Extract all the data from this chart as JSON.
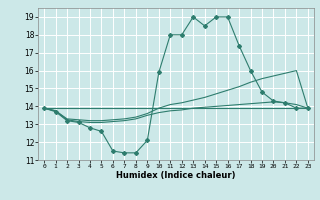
{
  "title": "",
  "xlabel": "Humidex (Indice chaleur)",
  "xlim": [
    -0.5,
    23.5
  ],
  "ylim": [
    11,
    19.5
  ],
  "yticks": [
    11,
    12,
    13,
    14,
    15,
    16,
    17,
    18,
    19
  ],
  "xticks": [
    0,
    1,
    2,
    3,
    4,
    5,
    6,
    7,
    8,
    9,
    10,
    11,
    12,
    13,
    14,
    15,
    16,
    17,
    18,
    19,
    20,
    21,
    22,
    23
  ],
  "background_color": "#cce8e8",
  "grid_color": "#ffffff",
  "line_color": "#2e7d6e",
  "lines": [
    {
      "x": [
        0,
        1,
        2,
        3,
        4,
        5,
        6,
        7,
        8,
        9,
        10,
        11,
        12,
        13,
        14,
        15,
        16,
        17,
        18,
        19,
        20,
        21,
        22,
        23
      ],
      "y": [
        13.9,
        13.7,
        13.2,
        13.1,
        12.8,
        12.6,
        11.5,
        11.4,
        11.4,
        12.1,
        15.9,
        18.0,
        18.0,
        19.0,
        18.5,
        19.0,
        19.0,
        17.4,
        16.0,
        14.8,
        14.3,
        14.2,
        13.9,
        13.9
      ],
      "marker": true
    },
    {
      "x": [
        0,
        1,
        2,
        3,
        4,
        5,
        6,
        7,
        8,
        9,
        10,
        11,
        12,
        13,
        14,
        15,
        16,
        17,
        18,
        19,
        20,
        21,
        22,
        23
      ],
      "y": [
        13.9,
        13.75,
        13.3,
        13.25,
        13.2,
        13.2,
        13.25,
        13.3,
        13.4,
        13.6,
        13.9,
        14.1,
        14.2,
        14.35,
        14.5,
        14.7,
        14.9,
        15.1,
        15.35,
        15.55,
        15.7,
        15.85,
        16.0,
        13.9
      ],
      "marker": false
    },
    {
      "x": [
        0,
        1,
        2,
        3,
        4,
        5,
        6,
        7,
        8,
        9,
        10,
        11,
        12,
        13,
        14,
        15,
        16,
        17,
        18,
        19,
        20,
        21,
        22,
        23
      ],
      "y": [
        13.9,
        13.75,
        13.25,
        13.15,
        13.1,
        13.1,
        13.15,
        13.2,
        13.3,
        13.5,
        13.65,
        13.75,
        13.8,
        13.9,
        13.95,
        14.0,
        14.05,
        14.1,
        14.15,
        14.2,
        14.25,
        14.2,
        14.1,
        13.9
      ],
      "marker": false
    },
    {
      "x": [
        0,
        23
      ],
      "y": [
        13.9,
        13.9
      ],
      "marker": false
    }
  ]
}
